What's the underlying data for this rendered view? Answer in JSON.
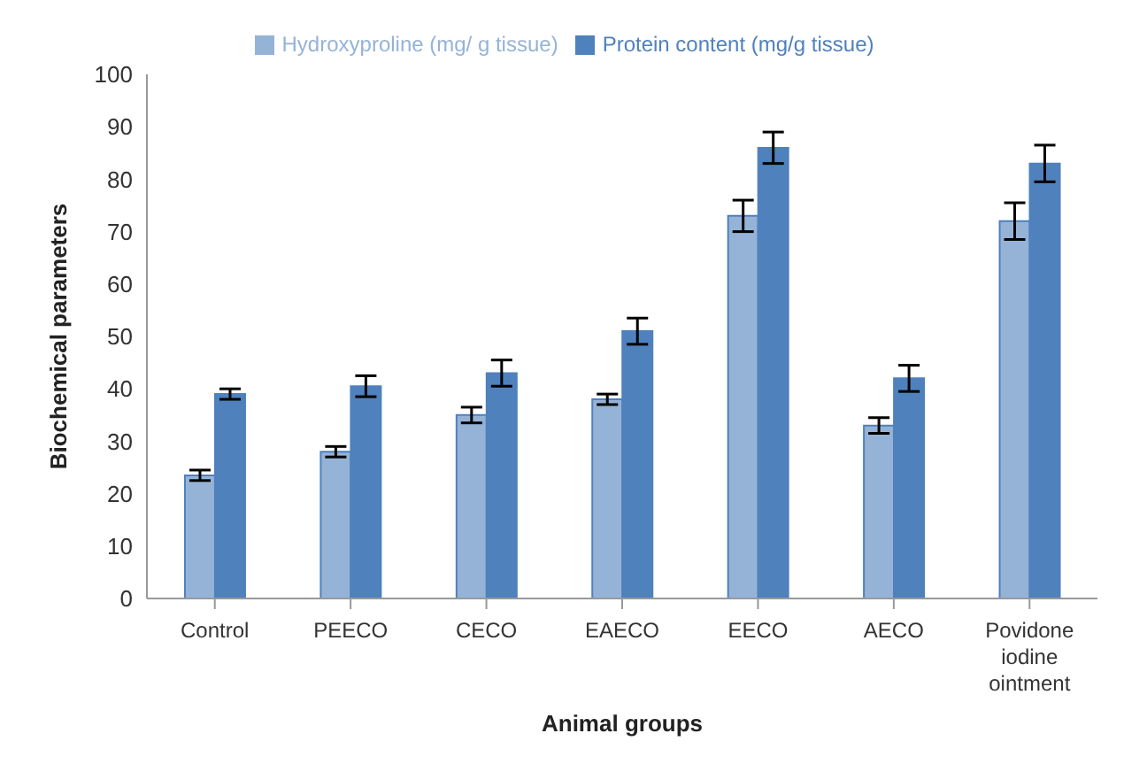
{
  "chart_data": {
    "type": "bar",
    "xlabel": "Animal groups",
    "ylabel": "Biochemical parameters",
    "categories": [
      "Control",
      "PEECO",
      "CECO",
      "EAECO",
      "EECO",
      "AECO",
      "Povidone iodine ointment"
    ],
    "series": [
      {
        "name": "Hydroxyproline  (mg/ g tissue)",
        "color": "#95b3d7",
        "values": [
          23.5,
          28,
          35,
          38,
          73,
          33,
          72
        ],
        "errors": [
          1,
          1,
          1.5,
          1,
          3,
          1.5,
          3.5
        ]
      },
      {
        "name": "Protein content (mg/g tissue)",
        "color": "#4f81bd",
        "values": [
          39,
          40.5,
          43,
          51,
          86,
          42,
          83
        ],
        "errors": [
          1,
          2,
          2.5,
          2.5,
          3,
          2.5,
          3.5
        ]
      }
    ],
    "ylim": [
      0,
      100
    ],
    "yticks": [
      0,
      10,
      20,
      30,
      40,
      50,
      60,
      70,
      80,
      90,
      100
    ],
    "grid": false,
    "legend": "top"
  }
}
